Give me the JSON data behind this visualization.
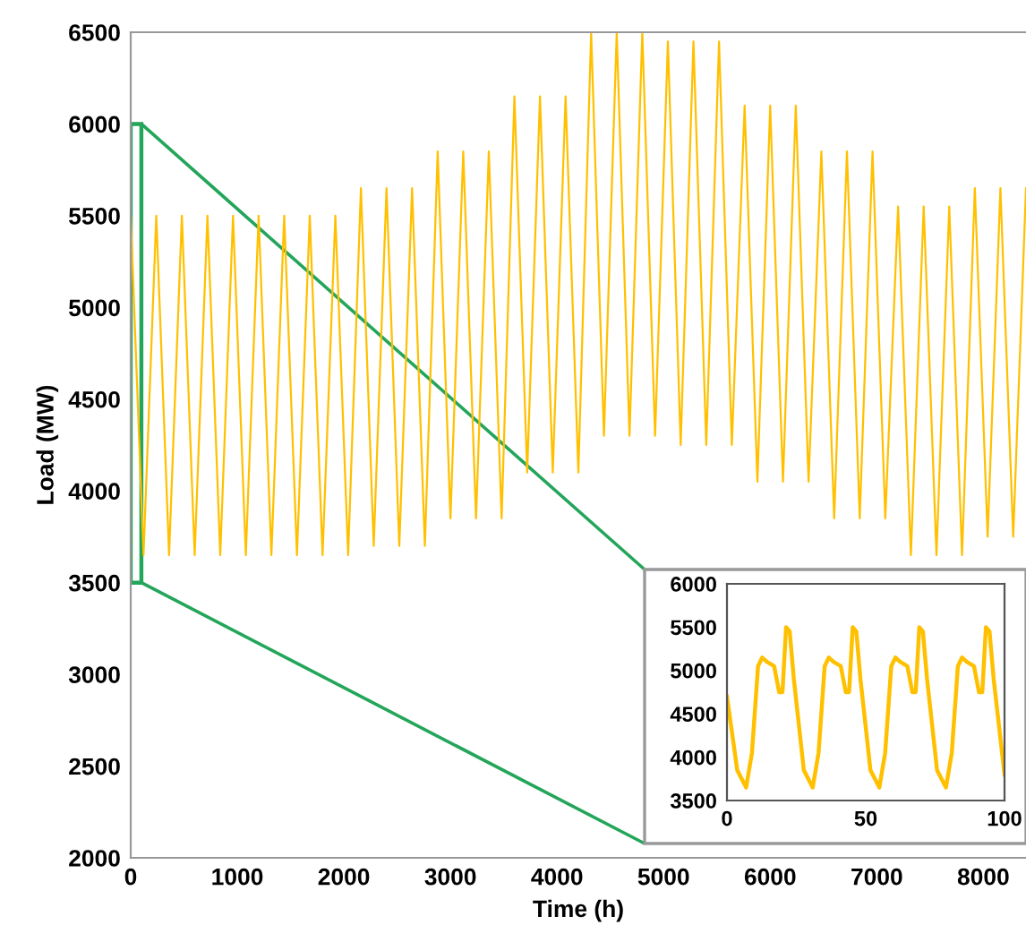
{
  "chart_data": [
    {
      "type": "line",
      "xlabel": "Time (h)",
      "ylabel": "Load (MW)",
      "xlim": [
        0,
        8400
      ],
      "ylim": [
        2000,
        6500
      ],
      "xticks": [
        0,
        1000,
        2000,
        3000,
        4000,
        5000,
        6000,
        7000,
        8000
      ],
      "yticks": [
        2000,
        2500,
        3000,
        3500,
        4000,
        4500,
        5000,
        5500,
        6000,
        6500
      ],
      "grid": false,
      "legend": false,
      "series": [
        {
          "color": "#ffc000",
          "x": [
            0,
            120,
            240,
            360,
            480,
            600,
            720,
            840,
            960,
            1080,
            1200,
            1320,
            1440,
            1560,
            1680,
            1800,
            1920,
            2040,
            2160,
            2280,
            2400,
            2520,
            2640,
            2760,
            2880,
            3000,
            3120,
            3240,
            3360,
            3480,
            3600,
            3720,
            3840,
            3960,
            4080,
            4200,
            4320,
            4440,
            4560,
            4680,
            4800,
            4920,
            5040,
            5160,
            5280,
            5400,
            5520,
            5640,
            5760,
            5880,
            6000,
            6120,
            6240,
            6360,
            6480,
            6600,
            6720,
            6840,
            6960,
            7080,
            7200,
            7320,
            7440,
            7560,
            7680,
            7800,
            7920,
            8040,
            8160,
            8280,
            8400
          ],
          "values": [
            5500,
            3650,
            5500,
            3650,
            5500,
            3650,
            5500,
            3650,
            5500,
            3650,
            5500,
            3650,
            5500,
            3650,
            5500,
            3650,
            5500,
            3650,
            5650,
            3700,
            5650,
            3700,
            5650,
            3700,
            5850,
            3850,
            5850,
            3850,
            5850,
            3850,
            6150,
            4100,
            6150,
            4100,
            6150,
            4100,
            6500,
            4300,
            6500,
            4300,
            6500,
            4300,
            6450,
            4250,
            6450,
            4250,
            6450,
            4250,
            6100,
            4050,
            6100,
            4050,
            6100,
            4050,
            5850,
            3850,
            5850,
            3850,
            5850,
            3850,
            5550,
            3650,
            5550,
            3650,
            5550,
            3650,
            5650,
            3750,
            5650,
            3750,
            5650
          ]
        }
      ]
    },
    {
      "type": "line",
      "xlim": [
        0,
        100
      ],
      "ylim": [
        3500,
        6000
      ],
      "xticks": [
        0,
        50,
        100
      ],
      "yticks": [
        3500,
        4000,
        4500,
        5000,
        5500,
        6000
      ],
      "grid": false,
      "legend": false,
      "series": [
        {
          "color": "#ffc000",
          "x": [
            0,
            3.7,
            6.9,
            9,
            11.2,
            12.7,
            14.4,
            17,
            18.8,
            20,
            21.3,
            22.6,
            24.1,
            27.7,
            30.9,
            33,
            35.2,
            36.7,
            38.4,
            41,
            42.8,
            44,
            45.3,
            46.6,
            48.1,
            51.7,
            54.9,
            57,
            59.2,
            60.7,
            62.4,
            65,
            66.8,
            68,
            69.3,
            70.6,
            72.1,
            75.7,
            78.9,
            81,
            83.2,
            84.7,
            86.4,
            89,
            90.8,
            92,
            93.3,
            94.6,
            96.1,
            100
          ],
          "values": [
            4700,
            3850,
            3650,
            4050,
            5050,
            5150,
            5100,
            5050,
            4750,
            4750,
            5500,
            5450,
            4900,
            3850,
            3650,
            4050,
            5050,
            5150,
            5100,
            5050,
            4750,
            4750,
            5500,
            5450,
            4900,
            3850,
            3650,
            4050,
            5050,
            5150,
            5100,
            5050,
            4750,
            4750,
            5500,
            5450,
            4900,
            3850,
            3650,
            4050,
            5050,
            5150,
            5100,
            5050,
            4750,
            4750,
            5500,
            5450,
            4900,
            3800
          ]
        }
      ]
    }
  ]
}
